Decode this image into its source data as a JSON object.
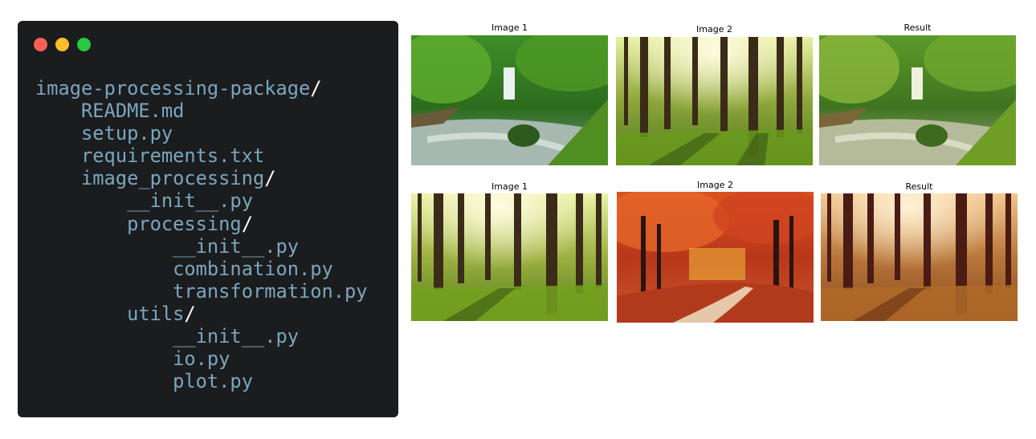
{
  "window": {
    "controls": [
      {
        "name": "close",
        "color": "#fe5f57"
      },
      {
        "name": "minimize",
        "color": "#febc2e"
      },
      {
        "name": "maximize",
        "color": "#28c840"
      }
    ]
  },
  "file_tree": [
    {
      "depth": 0,
      "name": "image-processing-package",
      "is_dir": true
    },
    {
      "depth": 1,
      "name": "README.md",
      "is_dir": false
    },
    {
      "depth": 1,
      "name": "setup.py",
      "is_dir": false
    },
    {
      "depth": 1,
      "name": "requirements.txt",
      "is_dir": false
    },
    {
      "depth": 1,
      "name": "image_processing",
      "is_dir": true
    },
    {
      "depth": 2,
      "name": "__init__.py",
      "is_dir": false
    },
    {
      "depth": 2,
      "name": "processing",
      "is_dir": true
    },
    {
      "depth": 3,
      "name": "__init__.py",
      "is_dir": false
    },
    {
      "depth": 3,
      "name": "combination.py",
      "is_dir": false
    },
    {
      "depth": 3,
      "name": "transformation.py",
      "is_dir": false
    },
    {
      "depth": 2,
      "name": "utils",
      "is_dir": true
    },
    {
      "depth": 3,
      "name": "__init__.py",
      "is_dir": false
    },
    {
      "depth": 3,
      "name": "io.py",
      "is_dir": false
    },
    {
      "depth": 3,
      "name": "plot.py",
      "is_dir": false
    }
  ],
  "colors": {
    "code_background": "#1b1c1e",
    "code_text": "#7aa6bf",
    "slash": "#ffffff"
  },
  "figures": [
    {
      "panels": [
        {
          "title": "Image 1",
          "scene": "waterfall-stream"
        },
        {
          "title": "Image 2",
          "scene": "sunlit-forest"
        },
        {
          "title": "Result",
          "scene": "waterfall-stream-matched"
        }
      ]
    },
    {
      "panels": [
        {
          "title": "Image 1",
          "scene": "sunlit-forest"
        },
        {
          "title": "Image 2",
          "scene": "autumn-path"
        },
        {
          "title": "Result",
          "scene": "sunlit-forest-autumn-toned"
        }
      ]
    }
  ]
}
